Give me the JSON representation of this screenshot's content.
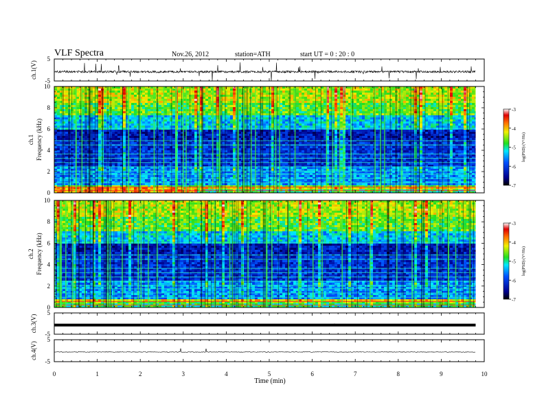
{
  "header": {
    "title": "VLF Spectra",
    "date": "Nov.26, 2012",
    "station": "station=ATH",
    "start": "start  UT =   0 : 20 : 0"
  },
  "chart_data": [
    {
      "type": "line",
      "name": "ch1-waveform",
      "ylabel": "ch.1(V)",
      "ylim": [
        -5,
        5
      ],
      "ytick_labels": [
        "5",
        "-5"
      ],
      "baseline": -0.8,
      "noise_amplitude": 0.5
    },
    {
      "type": "heatmap",
      "name": "ch1-spectrogram",
      "ylabel_channel": "ch.1",
      "ylabel": "Frequency (kHz)",
      "ylim": [
        0,
        10
      ],
      "ytick_labels": [
        "0",
        "2",
        "4",
        "6",
        "8",
        "10"
      ],
      "colorbar_label": "log(PSD) (V²/Hz)",
      "colorbar_ticks": [
        "-3",
        "-4",
        "-5",
        "-6",
        "-7"
      ],
      "clim": [
        -7,
        -3
      ]
    },
    {
      "type": "heatmap",
      "name": "ch2-spectrogram",
      "ylabel_channel": "ch.2",
      "ylabel": "Frequency (kHz)",
      "ylim": [
        0,
        10
      ],
      "ytick_labels": [
        "0",
        "2",
        "4",
        "6",
        "8",
        "10"
      ],
      "colorbar_label": "log(PSD) (V²/Hz)",
      "colorbar_ticks": [
        "-3",
        "-4",
        "-5",
        "-6",
        "-7"
      ],
      "clim": [
        -7,
        -3
      ]
    },
    {
      "type": "line",
      "name": "ch3-waveform",
      "ylabel": "ch.3(V)",
      "ylim": [
        -5,
        5
      ],
      "ytick_labels": [
        "5",
        "-5"
      ],
      "baseline": -0.7,
      "noise_amplitude": 0.02
    },
    {
      "type": "line",
      "name": "ch4-waveform",
      "ylabel": "ch.4(V)",
      "ylim": [
        -5,
        5
      ],
      "ytick_labels": [
        "5",
        "-5"
      ],
      "baseline": -0.6,
      "noise_amplitude": 0.15
    }
  ],
  "x_axis": {
    "label": "Time (min)",
    "xlim": [
      0,
      10
    ],
    "data_end": 9.8,
    "tick_labels": [
      "0",
      "1",
      "2",
      "3",
      "4",
      "5",
      "6",
      "7",
      "8",
      "9",
      "10"
    ]
  }
}
